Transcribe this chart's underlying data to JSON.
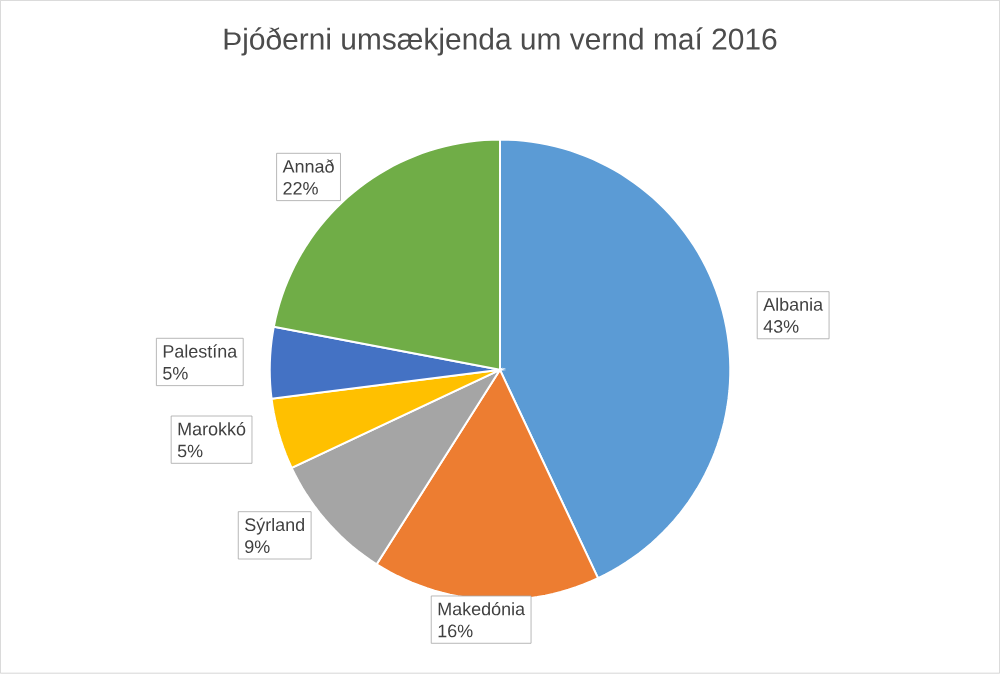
{
  "chart_data": {
    "type": "pie",
    "title": "Þjóðerni umsækjenda um vernd maí 2016",
    "categories": [
      "Albania",
      "Makedónia",
      "Sýrland",
      "Marokkó",
      "Palestína",
      "Annað"
    ],
    "values": [
      43,
      16,
      9,
      5,
      5,
      22
    ],
    "value_labels": [
      "43%",
      "16%",
      "9%",
      "5%",
      "5%",
      "22%"
    ],
    "colors": [
      "#5b9bd5",
      "#ed7d31",
      "#a5a5a5",
      "#ffc000",
      "#4472c4",
      "#70ad47"
    ]
  }
}
